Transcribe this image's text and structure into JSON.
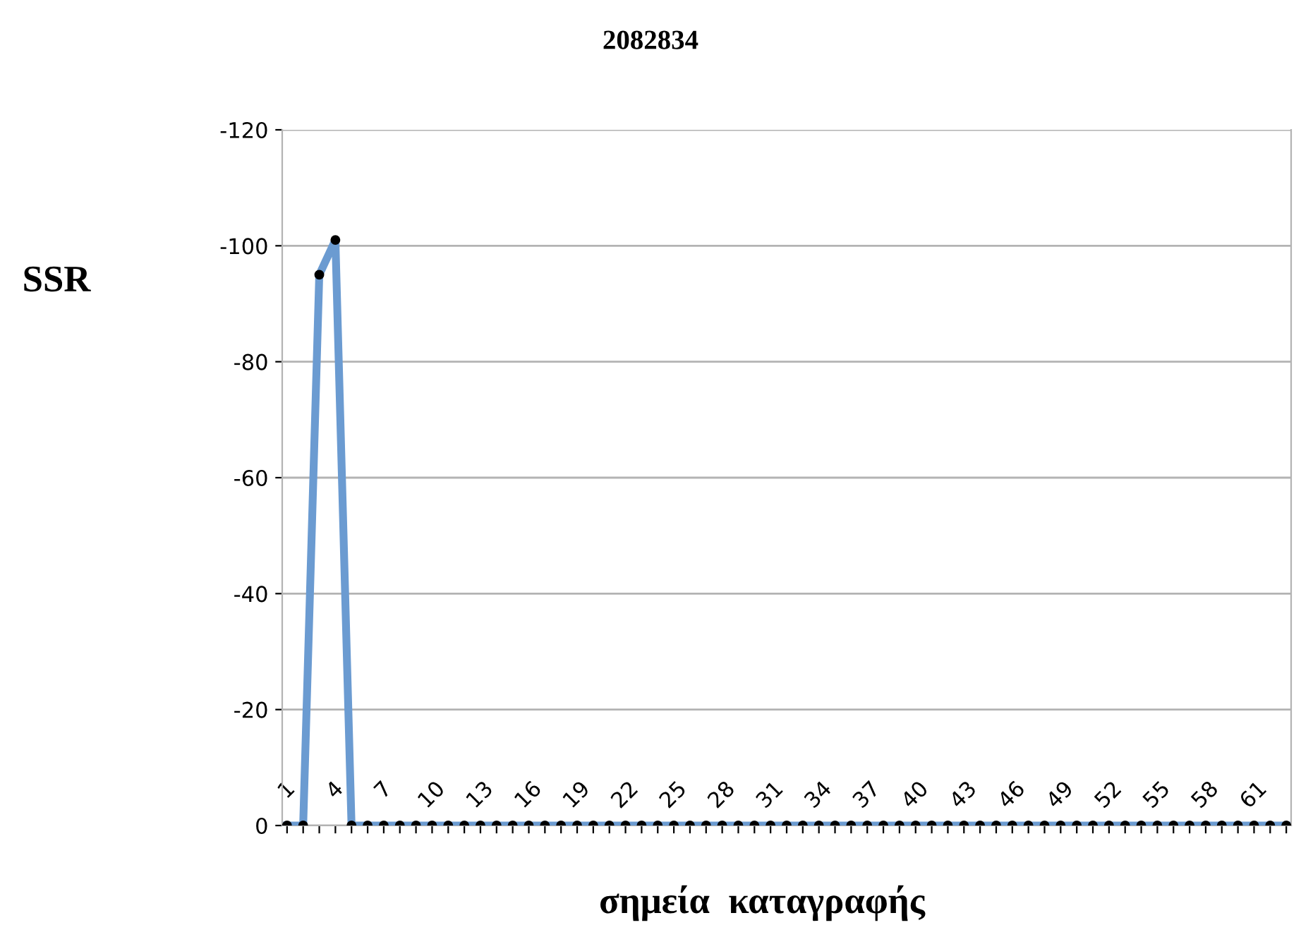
{
  "chart_data": {
    "type": "line",
    "title": "2082834",
    "xlabel": "σημεία  καταγραφής",
    "ylabel": "SSR",
    "categories": [
      "1",
      null,
      null,
      "4",
      null,
      null,
      "7",
      null,
      null,
      "10",
      null,
      null,
      "13",
      null,
      null,
      "16",
      null,
      null,
      "19",
      null,
      null,
      "22",
      null,
      null,
      "25",
      null,
      null,
      "28",
      null,
      null,
      "31",
      null,
      null,
      "34",
      null,
      null,
      "37",
      null,
      null,
      "40",
      null,
      null,
      "43",
      null,
      null,
      "46",
      null,
      null,
      "49",
      null,
      null,
      "52",
      null,
      null,
      "55",
      null,
      null,
      "58",
      null,
      null,
      "61",
      null,
      null
    ],
    "series": [
      {
        "color": "#6b9bd1",
        "values": [
          0,
          0,
          -95,
          -101,
          0,
          0,
          0,
          0,
          0,
          0,
          0,
          0,
          0,
          0,
          0,
          0,
          0,
          0,
          0,
          0,
          0,
          0,
          0,
          0,
          0,
          0,
          0,
          0,
          0,
          0,
          0,
          0,
          0,
          0,
          0,
          0,
          0,
          0,
          0,
          0,
          0,
          0,
          0,
          0,
          0,
          0,
          0,
          0,
          0,
          0,
          0,
          0,
          0,
          0,
          0,
          0,
          0,
          0,
          0,
          0,
          0,
          0,
          0
        ]
      }
    ],
    "ylim": [
      0,
      -120
    ],
    "yticks": [
      0,
      -20,
      -40,
      -60,
      -80,
      -100,
      -120
    ],
    "grid": "y",
    "marker": "circle",
    "line_style": "solid",
    "legend": false
  }
}
